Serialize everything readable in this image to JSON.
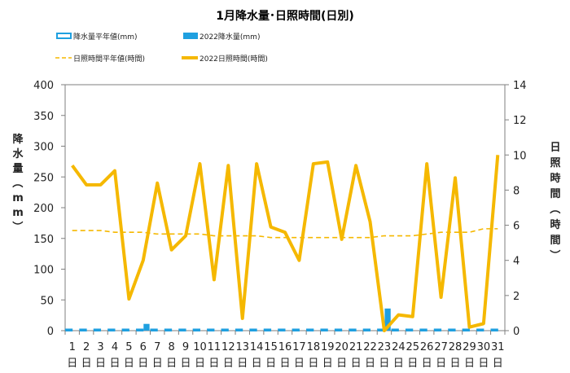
{
  "chart_data": {
    "type": "bar+line",
    "title": "1月降水量･日照時間(日別)",
    "legend": [
      {
        "label": "降水量平年値(mm)",
        "kind": "bar-outline",
        "color": "#1fa0e0"
      },
      {
        "label": "2022降水量(mm)",
        "kind": "bar",
        "color": "#1fa0e0"
      },
      {
        "label": "日照時間平年値(時間)",
        "kind": "dash-line",
        "color": "#f5b800"
      },
      {
        "label": "2022日照時間(時間)",
        "kind": "line",
        "color": "#f5b800"
      }
    ],
    "categories": [
      "1",
      "2",
      "3",
      "4",
      "5",
      "6",
      "7",
      "8",
      "9",
      "10",
      "11",
      "12",
      "13",
      "14",
      "15",
      "16",
      "17",
      "18",
      "19",
      "20",
      "21",
      "22",
      "23",
      "24",
      "25",
      "26",
      "27",
      "28",
      "29",
      "30",
      "31"
    ],
    "x_suffix": "日",
    "ylabel_left": "降水量（mm）",
    "ylabel_right": "日照時間（時間）",
    "ylim_left": [
      0,
      400
    ],
    "yticks_left": [
      0,
      50,
      100,
      150,
      200,
      250,
      300,
      350,
      400
    ],
    "ylim_right": [
      0,
      14
    ],
    "yticks_right": [
      0,
      2,
      4,
      6,
      8,
      10,
      12,
      14
    ],
    "grid": false,
    "legend_position": "top",
    "series": [
      {
        "name": "降水量平年値(mm)",
        "axis": "left",
        "type": "bar-outline",
        "values": [
          2,
          2,
          2,
          2,
          2,
          2,
          2,
          2,
          2,
          2,
          2,
          2,
          2,
          2,
          2,
          2,
          2,
          2,
          2,
          2,
          2,
          2,
          2,
          2,
          2,
          2,
          2,
          2,
          2,
          2,
          2
        ]
      },
      {
        "name": "2022降水量(mm)",
        "axis": "left",
        "type": "bar",
        "values": [
          0,
          0,
          0,
          0,
          0,
          11,
          0,
          0,
          0,
          0,
          0,
          0,
          0,
          0,
          0,
          0,
          0,
          0,
          0,
          0,
          0,
          0,
          36,
          0,
          0,
          0,
          0,
          0,
          0,
          0,
          0
        ]
      },
      {
        "name": "日照時間平年値(時間)",
        "axis": "right",
        "type": "dash-line",
        "values": [
          5.7,
          5.7,
          5.7,
          5.6,
          5.6,
          5.6,
          5.5,
          5.5,
          5.5,
          5.5,
          5.4,
          5.4,
          5.4,
          5.4,
          5.3,
          5.3,
          5.3,
          5.3,
          5.3,
          5.3,
          5.3,
          5.3,
          5.4,
          5.4,
          5.4,
          5.5,
          5.6,
          5.6,
          5.6,
          5.8,
          5.8
        ]
      },
      {
        "name": "2022日照時間(時間)",
        "axis": "right",
        "type": "line",
        "values": [
          9.4,
          8.3,
          8.3,
          9.1,
          1.8,
          4.0,
          8.4,
          4.6,
          5.4,
          9.5,
          2.9,
          9.4,
          0.7,
          9.5,
          5.9,
          5.6,
          4.0,
          9.5,
          9.6,
          5.2,
          9.4,
          6.2,
          0.0,
          0.9,
          0.8,
          9.5,
          1.9,
          8.7,
          0.2,
          0.4,
          10.0
        ]
      }
    ],
    "colors": {
      "rain": "#1fa0e0",
      "sun": "#f5b800",
      "axis": "#7f7f7f"
    }
  }
}
